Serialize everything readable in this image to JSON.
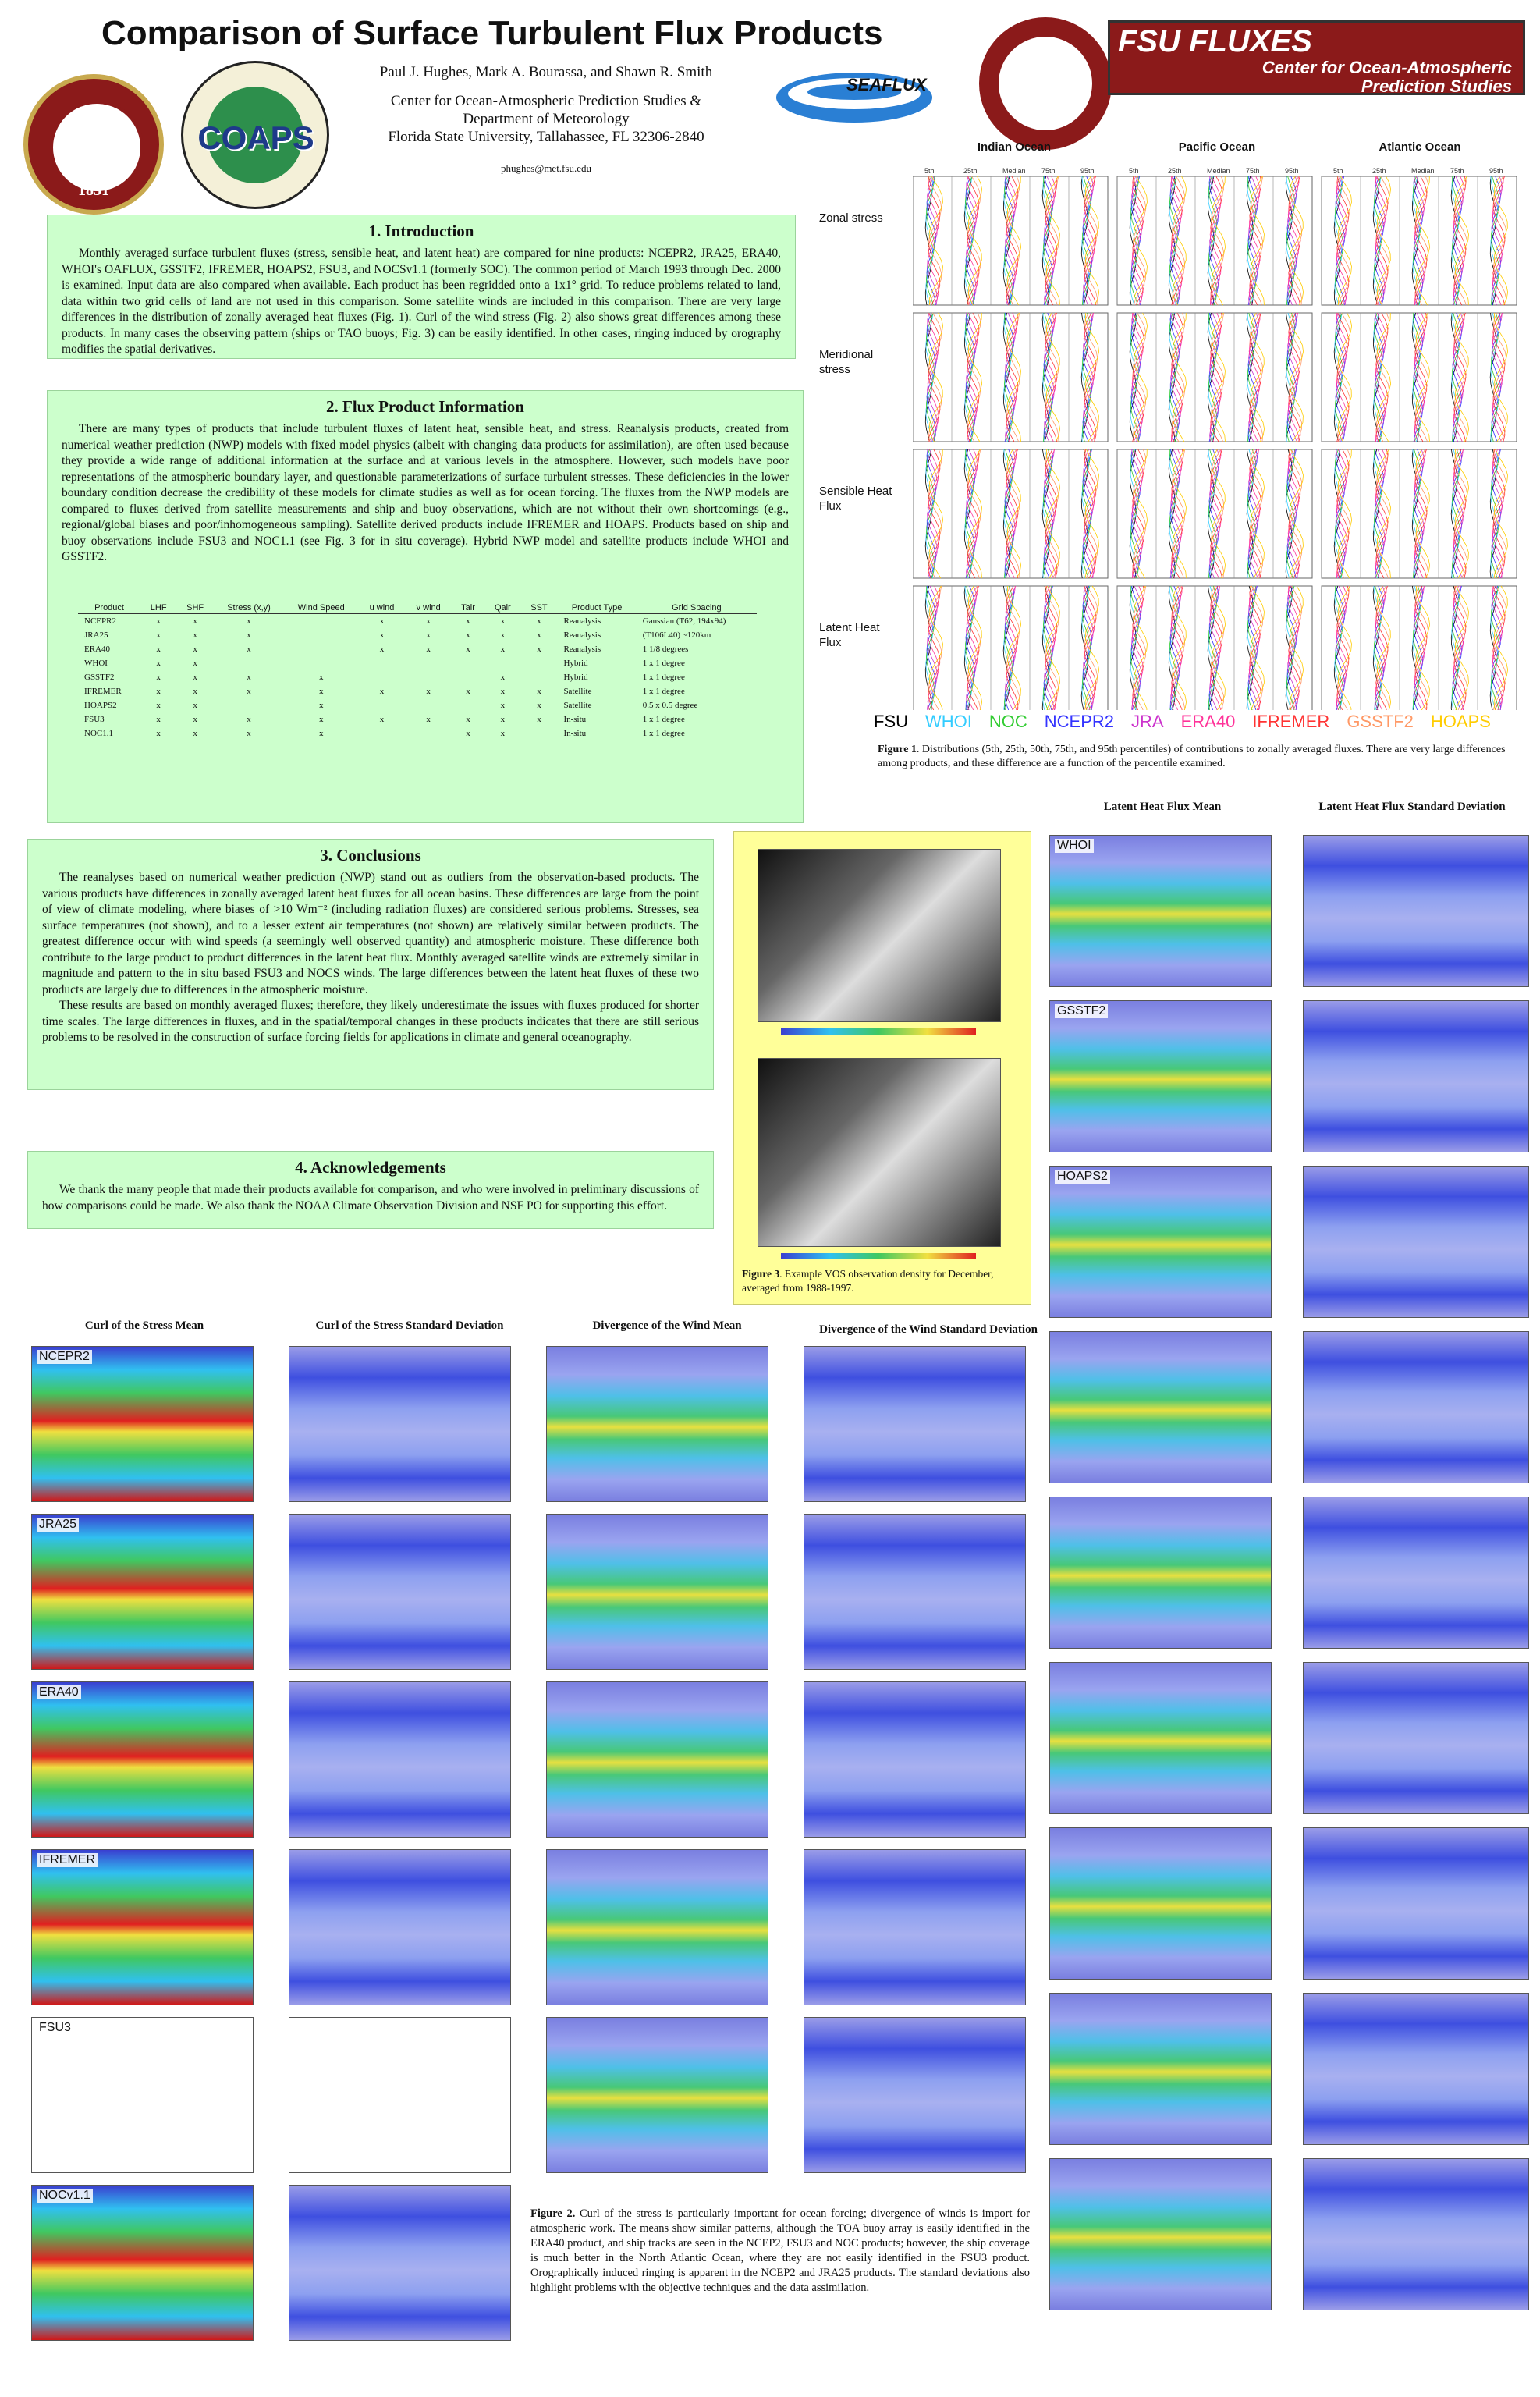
{
  "header": {
    "title": "Comparison of Surface Turbulent Flux Products",
    "authors": "Paul J. Hughes, Mark A. Bourassa, and  Shawn R. Smith",
    "affiliation_1": "Center for Ocean-Atmospheric Prediction Studies &",
    "affiliation_2": "Department of Meteorology",
    "affiliation_3": "Florida State University, Tallahassee,  FL 32306-2840",
    "email": "phughes@met.fsu.edu"
  },
  "logos": {
    "fsu_year": "1851",
    "coaps": "COAPS",
    "seaflux": "SEAFLUX",
    "fsu_fluxes": "FSU FLUXES",
    "banner_line1": "Center for Ocean-Atmospheric",
    "banner_line2": "Prediction Studies"
  },
  "sections": {
    "intro": {
      "heading": "1.  Introduction",
      "body": "Monthly averaged surface turbulent fluxes (stress, sensible heat, and latent heat) are compared for nine products: NCEPR2, JRA25, ERA40, WHOI's OAFLUX, GSSTF2, IFREMER, HOAPS2, FSU3, and NOCSv1.1 (formerly SOC). The common period of March 1993 through Dec. 2000 is examined. Input data are also compared when available. Each product has been regridded onto a 1x1° grid. To reduce problems related to land, data within two grid cells of land are not used in this comparison. Some satellite winds are included in this comparison. There are very large differences in the distribution of zonally averaged heat fluxes (Fig. 1). Curl of the wind stress (Fig. 2) also shows great differences among these products. In many cases the observing pattern (ships or TAO buoys; Fig. 3) can be easily identified. In other cases, ringing induced by orography modifies the spatial derivatives."
    },
    "flux_info": {
      "heading": "2. Flux Product Information",
      "body": "There are many types of products that include turbulent fluxes of latent heat, sensible heat, and stress. Reanalysis products, created from numerical weather prediction (NWP) models with fixed model physics (albeit with changing data products for assimilation), are often used because they provide a wide range of additional information at the surface and at various levels in the atmosphere. However, such models have poor representations of the atmospheric boundary layer, and questionable parameterizations of surface turbulent stresses. These deficiencies in the lower boundary condition decrease the credibility of these models for climate studies as well as for ocean forcing. The fluxes from the NWP models are compared to fluxes derived from satellite measurements and ship and buoy observations, which are not without their own shortcomings (e.g., regional/global biases and poor/inhomogeneous sampling).  Satellite derived products include IFREMER and HOAPS.  Products based on ship and buoy observations include FSU3 and NOC1.1 (see Fig. 3 for in situ coverage).  Hybrid NWP model and satellite products include WHOI and GSSTF2."
    },
    "conclusions": {
      "heading": "3. Conclusions",
      "body1": "The reanalyses based on numerical weather prediction (NWP) stand out as outliers from the observation-based products. The various products have differences in zonally averaged latent heat fluxes for all ocean basins. These differences are large from the point of view of climate modeling, where biases of  >10 Wm⁻² (including radiation fluxes) are considered serious problems. Stresses, sea surface temperatures (not shown), and to a lesser extent air temperatures (not shown) are relatively similar between products. The greatest difference occur with wind speeds (a seemingly well observed quantity) and atmospheric moisture. These difference both contribute to the large product to product differences in the latent heat flux. Monthly averaged satellite winds are extremely similar in magnitude and pattern to the in situ based FSU3 and NOCS winds. The large differences between the latent heat fluxes of these two products are largely due to differences in the atmospheric moisture.",
      "body2": "These results are based on monthly averaged fluxes; therefore, they likely underestimate the issues with fluxes produced for shorter time scales. The large differences in fluxes, and in the spatial/temporal changes in these products indicates that there are still serious problems to be resolved in the construction of surface forcing fields for applications in climate and general oceanography."
    },
    "acknowledgements": {
      "heading": "4. Acknowledgements",
      "body": "We thank the many people that made their products available for comparison, and who were involved in preliminary discussions of how comparisons could be made. We also  thank the NOAA Climate Observation Division and NSF PO for supporting this effort."
    }
  },
  "product_table": {
    "headers": [
      "Product",
      "LHF",
      "SHF",
      "Stress (x,y)",
      "Wind Speed",
      "u wind",
      "v wind",
      "Tair",
      "Qair",
      "SST",
      "Product Type",
      "Grid Spacing"
    ],
    "rows": [
      [
        "NCEPR2",
        "x",
        "x",
        "x",
        "",
        "x",
        "x",
        "x",
        "x",
        "x",
        "Reanalysis",
        "Gaussian (T62, 194x94)"
      ],
      [
        "JRA25",
        "x",
        "x",
        "x",
        "",
        "x",
        "x",
        "x",
        "x",
        "x",
        "Reanalysis",
        "(T106L40) ~120km"
      ],
      [
        "ERA40",
        "x",
        "x",
        "x",
        "",
        "x",
        "x",
        "x",
        "x",
        "x",
        "Reanalysis",
        "1 1/8 degrees"
      ],
      [
        "WHOI",
        "x",
        "x",
        "",
        "",
        "",
        "",
        "",
        "",
        "",
        "Hybrid",
        "1 x 1 degree"
      ],
      [
        "GSSTF2",
        "x",
        "x",
        "x",
        "x",
        "",
        "",
        "",
        "x",
        "",
        "Hybrid",
        "1 x 1 degree"
      ],
      [
        "IFREMER",
        "x",
        "x",
        "x",
        "x",
        "x",
        "x",
        "x",
        "x",
        "x",
        "Satellite",
        "1 x 1 degree"
      ],
      [
        "HOAPS2",
        "x",
        "x",
        "",
        "x",
        "",
        "",
        "",
        "x",
        "x",
        "Satellite",
        "0.5 x 0.5 degree"
      ],
      [
        "FSU3",
        "x",
        "x",
        "x",
        "x",
        "x",
        "x",
        "x",
        "x",
        "x",
        "In-situ",
        "1 x 1 degree"
      ],
      [
        "NOC1.1",
        "x",
        "x",
        "x",
        "x",
        "",
        "",
        "x",
        "x",
        "",
        "In-situ",
        "1 x 1 degree"
      ]
    ]
  },
  "figure1": {
    "basins": [
      "Indian Ocean",
      "Pacific Ocean",
      "Atlantic Ocean"
    ],
    "percentiles": [
      "5th",
      "25th",
      "Median",
      "75th",
      "95th"
    ],
    "rows": [
      "Zonal stress",
      "Meridional stress",
      "Sensible Heat Flux",
      "Latent Heat Flux"
    ],
    "legend": [
      {
        "name": "FSU",
        "color": "#000000"
      },
      {
        "name": "WHOI",
        "color": "#33ccff"
      },
      {
        "name": "NOC",
        "color": "#33cc33"
      },
      {
        "name": "NCEPR2",
        "color": "#3333ff"
      },
      {
        "name": "JRA",
        "color": "#cc33cc"
      },
      {
        "name": "ERA40",
        "color": "#ff3399"
      },
      {
        "name": "IFREMER",
        "color": "#ff3333"
      },
      {
        "name": "GSSTF2",
        "color": "#ff9966"
      },
      {
        "name": "HOAPS",
        "color": "#ffcc00"
      }
    ],
    "caption_label": "Figure 1",
    "caption": ". Distributions (5th, 25th, 50th, 75th, and 95th percentiles) of contributions to zonally averaged fluxes. There are very large differences among products, and these difference are a function of the percentile examined."
  },
  "figure3": {
    "caption_label": "Figure 3",
    "caption": ". Example VOS observation density for December, averaged from 1988-1997."
  },
  "lhf_maps": {
    "col_mean": "Latent Heat Flux Mean",
    "col_sd": "Latent Heat Flux Standard Deviation",
    "labels": [
      "WHOI",
      "GSSTF2",
      "HOAPS2",
      "",
      "",
      "",
      "",
      "",
      ""
    ]
  },
  "curl_maps": {
    "col1": "Curl of the Stress Mean",
    "col2": "Curl of the Stress Standard Deviation",
    "col3": "Divergence of the Wind Mean",
    "col4": "Divergence of the Wind Standard Deviation",
    "labels": [
      "NCEPR2",
      "JRA25",
      "ERA40",
      "IFREMER",
      "FSU3",
      "NOCv1.1"
    ]
  },
  "figure2": {
    "caption_label": "Figure 2.",
    "caption": " Curl of the stress is particularly important for ocean forcing; divergence of winds is import for atmospheric work. The means show similar patterns, although the TOA buoy array is easily identified in the ERA40 product, and ship tracks are seen in the NCEP2, FSU3 and NOC products; however, the ship coverage is much better in the North Atlantic Ocean, where they are not easily identified in the FSU3 product. Orographically induced ringing is apparent in the NCEP2 and JRA25 products. The standard deviations also  highlight problems with the objective techniques and the data assimilation."
  }
}
